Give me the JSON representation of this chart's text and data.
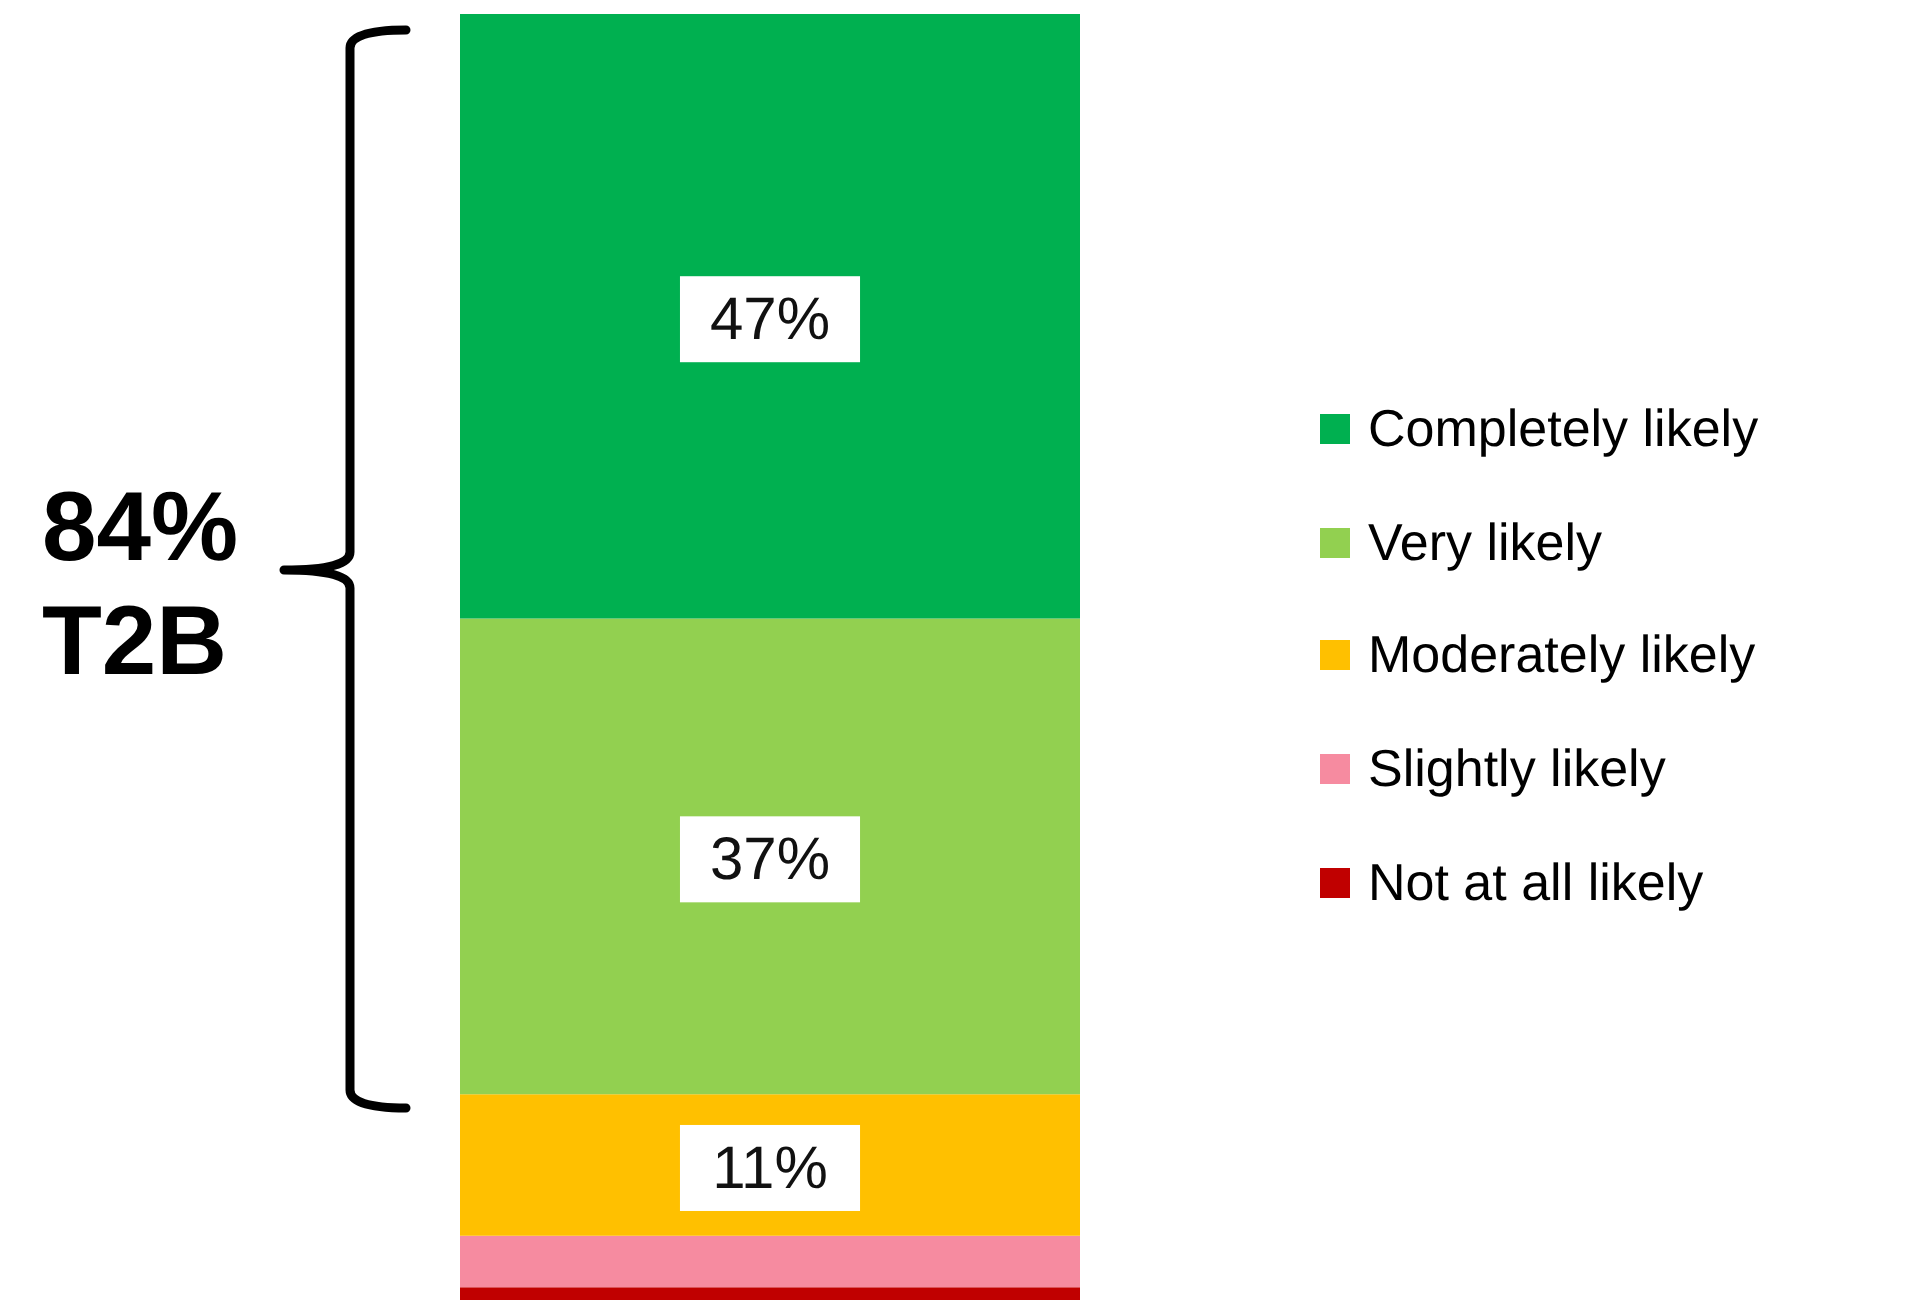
{
  "chart_data": {
    "type": "bar",
    "stacked": true,
    "categories": [
      null
    ],
    "series": [
      {
        "name": "Not at all likely",
        "color": "#c00000",
        "values": [
          1
        ]
      },
      {
        "name": "Slightly likely",
        "color": "#f68ba0",
        "values": [
          4
        ]
      },
      {
        "name": "Moderately likely",
        "color": "#ffc000",
        "values": [
          11
        ],
        "value_labels": [
          "11%"
        ]
      },
      {
        "name": "Very likely",
        "color": "#92d050",
        "values": [
          37
        ],
        "value_labels": [
          "37%"
        ]
      },
      {
        "name": "Completely likely",
        "color": "#00b050",
        "values": [
          47
        ],
        "value_labels": [
          "47%"
        ]
      }
    ],
    "legend": "right",
    "annotations": [
      "84%\nT2B"
    ]
  }
}
